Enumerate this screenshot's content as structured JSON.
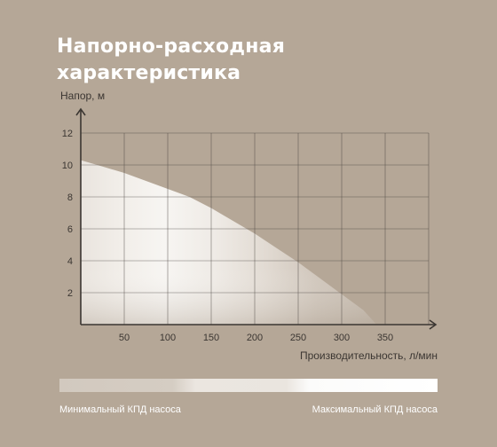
{
  "title_lines": [
    "Напорно-расходная",
    "характеристика"
  ],
  "efficiency_scale": {
    "min_label": "Минимальный КПД насоса",
    "max_label": "Максимальный КПД насоса"
  },
  "colors": {
    "background": "#b5a797",
    "grid": "#4a4440",
    "text": "#ffffff",
    "curve_fill_light": "#f3f0ec",
    "curve_fill_dark": "#c9beb2"
  },
  "chart_data": {
    "type": "area",
    "x": [
      0,
      25,
      50,
      75,
      100,
      125,
      150,
      175,
      200,
      225,
      250,
      275,
      300,
      325,
      340
    ],
    "y": [
      10.3,
      9.9,
      9.5,
      9.0,
      8.5,
      8.0,
      7.3,
      6.5,
      5.7,
      4.8,
      3.9,
      2.9,
      1.9,
      0.9,
      0
    ],
    "xlabel": "Производительность, л/мин",
    "ylabel": "Напор, м",
    "x_ticks": [
      50,
      100,
      150,
      200,
      250,
      300,
      350
    ],
    "y_ticks": [
      2,
      4,
      6,
      8,
      10,
      12
    ],
    "xlim": [
      0,
      395
    ],
    "ylim": [
      0,
      12
    ],
    "grid": true
  }
}
